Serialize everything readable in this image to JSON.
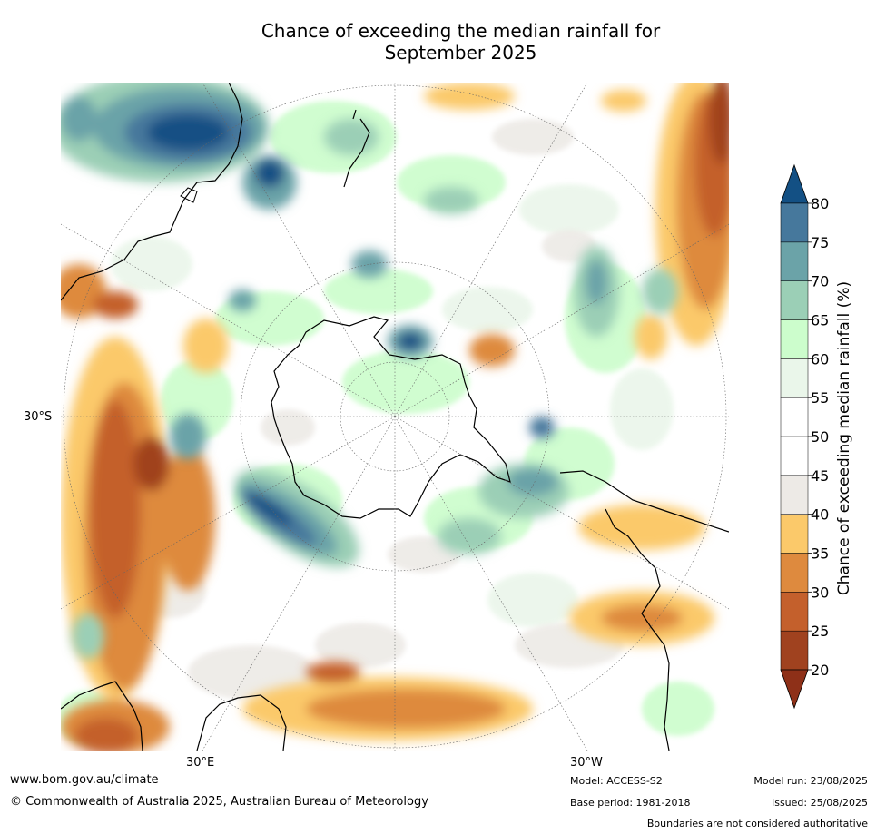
{
  "title_line1": "Chance of exceeding the median rainfall for",
  "title_line2": "September 2025",
  "map": {
    "projection": "south-polar-stereographic",
    "lat_label": "30°S",
    "lon_label_east": "30°E",
    "lon_label_west": "30°W"
  },
  "colorbar": {
    "label": "Chance of exceeding median rainfall (%)",
    "ticks": [
      "20",
      "25",
      "30",
      "35",
      "40",
      "45",
      "50",
      "55",
      "60",
      "65",
      "70",
      "75",
      "80"
    ],
    "colors": [
      "#a0421f",
      "#c4602c",
      "#de8a3e",
      "#fbc96a",
      "#edeae6",
      "#ffffff",
      "#ffffff",
      "#eaf6ea",
      "#ccfdcc",
      "#9bcfb6",
      "#6ba3a8",
      "#46789c"
    ],
    "low_extend_color": "#8e3018",
    "high_extend_color": "#135084"
  },
  "footer": {
    "website": "www.bom.gov.au/climate",
    "copyright": "© Commonwealth of Australia 2025, Australian Bureau of Meteorology",
    "model": "Model: ACCESS-S2",
    "base_period": "Base period: 1981-2018",
    "model_run": "Model run: 23/08/2025",
    "issued": "Issued: 25/08/2025",
    "disclaimer": "Boundaries are not considered authoritative"
  }
}
